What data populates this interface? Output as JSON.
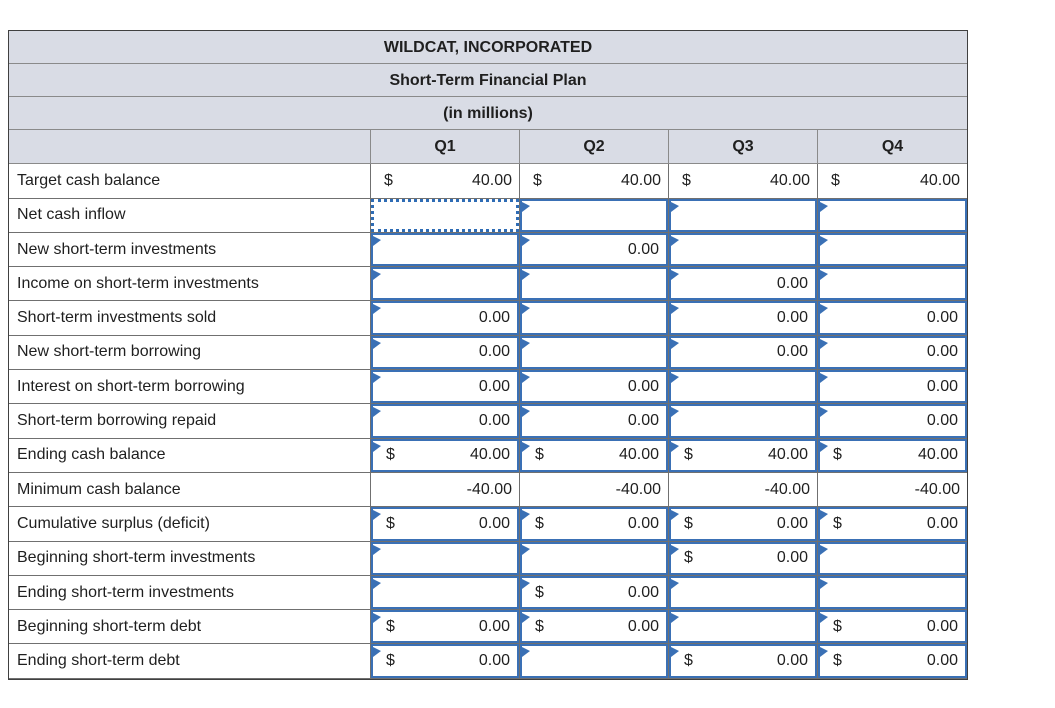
{
  "table": {
    "title": "WILDCAT, INCORPORATED",
    "subtitle": "Short-Term Financial Plan",
    "units": "(in millions)",
    "columns": [
      "Q1",
      "Q2",
      "Q3",
      "Q4"
    ],
    "colors": {
      "header_bg": "#d9dce5",
      "input_cell_border": "#3a70b5",
      "selection_border": "#2e6cb5",
      "grid_line": "#707070",
      "outer_border": "#404040",
      "text": "#1f1f1f"
    },
    "rows": [
      {
        "label": "Target cash balance",
        "type": "static",
        "cells": [
          {
            "cur": "$",
            "val": "40.00"
          },
          {
            "cur": "$",
            "val": "40.00"
          },
          {
            "cur": "$",
            "val": "40.00"
          },
          {
            "cur": "$",
            "val": "40.00"
          }
        ]
      },
      {
        "label": "Net cash inflow",
        "type": "input",
        "cells": [
          {
            "cur": "",
            "val": "",
            "selected": true
          },
          {
            "cur": "",
            "val": "",
            "tri": true
          },
          {
            "cur": "",
            "val": "",
            "tri": true
          },
          {
            "cur": "",
            "val": "",
            "tri": true
          }
        ]
      },
      {
        "label": "New short-term investments",
        "type": "input",
        "cells": [
          {
            "cur": "",
            "val": "",
            "tri": true
          },
          {
            "cur": "",
            "val": "0.00",
            "tri": true
          },
          {
            "cur": "",
            "val": "",
            "tri": true
          },
          {
            "cur": "",
            "val": "",
            "tri": true
          }
        ]
      },
      {
        "label": "Income on short-term investments",
        "type": "input",
        "cells": [
          {
            "cur": "",
            "val": "",
            "tri": true
          },
          {
            "cur": "",
            "val": "",
            "tri": true
          },
          {
            "cur": "",
            "val": "0.00",
            "tri": true
          },
          {
            "cur": "",
            "val": "",
            "tri": true
          }
        ]
      },
      {
        "label": "Short-term investments sold",
        "type": "input",
        "cells": [
          {
            "cur": "",
            "val": "0.00",
            "tri": true
          },
          {
            "cur": "",
            "val": "",
            "tri": true
          },
          {
            "cur": "",
            "val": "0.00",
            "tri": true
          },
          {
            "cur": "",
            "val": "0.00",
            "tri": true
          }
        ]
      },
      {
        "label": "New short-term borrowing",
        "type": "input",
        "cells": [
          {
            "cur": "",
            "val": "0.00",
            "tri": true
          },
          {
            "cur": "",
            "val": "",
            "tri": true
          },
          {
            "cur": "",
            "val": "0.00",
            "tri": true
          },
          {
            "cur": "",
            "val": "0.00",
            "tri": true
          }
        ]
      },
      {
        "label": "Interest on short-term borrowing",
        "type": "input",
        "cells": [
          {
            "cur": "",
            "val": "0.00",
            "tri": true
          },
          {
            "cur": "",
            "val": "0.00",
            "tri": true
          },
          {
            "cur": "",
            "val": "",
            "tri": true
          },
          {
            "cur": "",
            "val": "0.00",
            "tri": true
          }
        ]
      },
      {
        "label": "Short-term borrowing repaid",
        "type": "input",
        "cells": [
          {
            "cur": "",
            "val": "0.00",
            "tri": true
          },
          {
            "cur": "",
            "val": "0.00",
            "tri": true
          },
          {
            "cur": "",
            "val": "",
            "tri": true
          },
          {
            "cur": "",
            "val": "0.00",
            "tri": true
          }
        ]
      },
      {
        "label": "Ending cash balance",
        "type": "input",
        "cells": [
          {
            "cur": "$",
            "val": "40.00",
            "tri": true
          },
          {
            "cur": "$",
            "val": "40.00",
            "tri": true
          },
          {
            "cur": "$",
            "val": "40.00",
            "tri": true
          },
          {
            "cur": "$",
            "val": "40.00",
            "tri": true
          }
        ]
      },
      {
        "label": "Minimum cash balance",
        "type": "static",
        "cells": [
          {
            "cur": "",
            "val": "-40.00"
          },
          {
            "cur": "",
            "val": "-40.00"
          },
          {
            "cur": "",
            "val": "-40.00"
          },
          {
            "cur": "",
            "val": "-40.00"
          }
        ]
      },
      {
        "label": "Cumulative surplus (deficit)",
        "type": "input",
        "cells": [
          {
            "cur": "$",
            "val": "0.00",
            "tri": true
          },
          {
            "cur": "$",
            "val": "0.00",
            "tri": true
          },
          {
            "cur": "$",
            "val": "0.00",
            "tri": true
          },
          {
            "cur": "$",
            "val": "0.00",
            "tri": true
          }
        ]
      },
      {
        "label": "Beginning short-term investments",
        "type": "input",
        "cells": [
          {
            "cur": "",
            "val": "",
            "tri": true
          },
          {
            "cur": "",
            "val": "",
            "tri": true
          },
          {
            "cur": "$",
            "val": "0.00",
            "tri": true
          },
          {
            "cur": "",
            "val": "",
            "tri": true
          }
        ]
      },
      {
        "label": "Ending short-term investments",
        "type": "input",
        "cells": [
          {
            "cur": "",
            "val": "",
            "tri": true
          },
          {
            "cur": "$",
            "val": "0.00",
            "tri": true
          },
          {
            "cur": "",
            "val": "",
            "tri": true
          },
          {
            "cur": "",
            "val": "",
            "tri": true
          }
        ]
      },
      {
        "label": "Beginning short-term debt",
        "type": "input",
        "cells": [
          {
            "cur": "$",
            "val": "0.00",
            "tri": true
          },
          {
            "cur": "$",
            "val": "0.00",
            "tri": true
          },
          {
            "cur": "",
            "val": "",
            "tri": true
          },
          {
            "cur": "$",
            "val": "0.00",
            "tri": true
          }
        ]
      },
      {
        "label": "Ending short-term debt",
        "type": "input",
        "cells": [
          {
            "cur": "$",
            "val": "0.00",
            "tri": true
          },
          {
            "cur": "",
            "val": "",
            "tri": true
          },
          {
            "cur": "$",
            "val": "0.00",
            "tri": true
          },
          {
            "cur": "$",
            "val": "0.00",
            "tri": true
          }
        ]
      }
    ]
  }
}
